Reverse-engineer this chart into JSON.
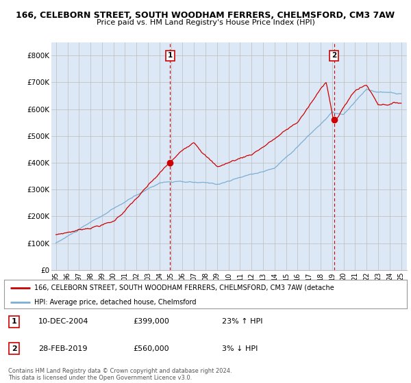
{
  "title1": "166, CELEBORN STREET, SOUTH WOODHAM FERRERS, CHELMSFORD, CM3 7AW",
  "title2": "Price paid vs. HM Land Registry's House Price Index (HPI)",
  "ylim": [
    0,
    850000
  ],
  "yticks": [
    0,
    100000,
    200000,
    300000,
    400000,
    500000,
    600000,
    700000,
    800000
  ],
  "ytick_labels": [
    "£0",
    "£100K",
    "£200K",
    "£300K",
    "£400K",
    "£500K",
    "£600K",
    "£700K",
    "£800K"
  ],
  "legend_line1": "166, CELEBORN STREET, SOUTH WOODHAM FERRERS, CHELMSFORD, CM3 7AW (detache",
  "legend_line2": "HPI: Average price, detached house, Chelmsford",
  "marker1_x": 2004.92,
  "marker1_price": 399000,
  "marker1_label": "1",
  "marker1_date": "10-DEC-2004",
  "marker1_hpi": "23% ↑ HPI",
  "marker2_x": 2019.17,
  "marker2_price": 560000,
  "marker2_label": "2",
  "marker2_date": "28-FEB-2019",
  "marker2_hpi": "3% ↓ HPI",
  "red_color": "#cc0000",
  "blue_color": "#7aaed4",
  "bg_color": "#ffffff",
  "plot_bg_color": "#dce8f5",
  "grid_color": "#bbbbbb",
  "footer_text1": "Contains HM Land Registry data © Crown copyright and database right 2024.",
  "footer_text2": "This data is licensed under the Open Government Licence v3.0."
}
